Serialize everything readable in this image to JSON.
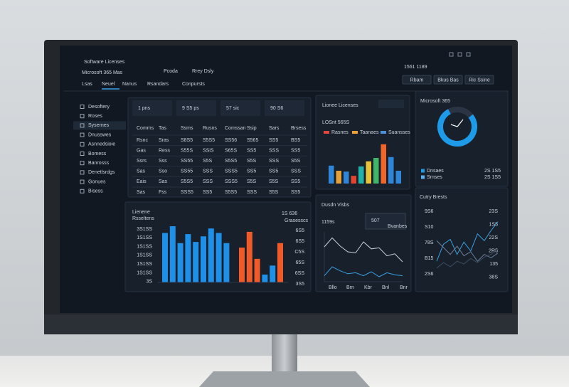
{
  "header": {
    "kicker": "Software Licenses",
    "title": "Microsoft 365 Mas",
    "crumbs": [
      "Pcoda",
      "Rrey Dsly"
    ],
    "code": "1561 1189",
    "buttons": [
      "Rbam",
      "Bkus Bas",
      "Ric Ssine"
    ]
  },
  "tabs": [
    "Lsas",
    "Neuel",
    "Nanus",
    "Rsandars",
    "Conpursts"
  ],
  "sidebar": [
    "Desoftery",
    "Roses",
    "Sysernes",
    "Dnusswes",
    "Asnnedsioie",
    "Bomess",
    "Banrosss",
    "Denetlsrdgs",
    "Gonues",
    "Bisess"
  ],
  "kpis": [
    "1 pns",
    "9 S5 ps",
    "57 sic",
    "90 S6"
  ],
  "table": {
    "columns": [
      "Comms",
      "Tas",
      "Ssms",
      "Rusns",
      "Comssan",
      "Ssip",
      "Sars",
      "Brsess"
    ],
    "rows": [
      [
        "Rsnc",
        "Sras",
        "S8S5",
        "S5S5",
        "SS56",
        "S565",
        "SS5",
        "BS5"
      ],
      [
        "Gas",
        "Ress",
        "S55S",
        "SSiS",
        "S65S",
        "SS5",
        "SSS",
        "SS5"
      ],
      [
        "Ssrs",
        "Sss",
        "SS55",
        "S5S",
        "S5S5",
        "S5S",
        "SSS",
        "S5S"
      ],
      [
        "Sas",
        "Sso",
        "SS55",
        "SSS",
        "SSS5",
        "SS5",
        "SS5",
        "SSS"
      ],
      [
        "Eais",
        "Sas",
        "S5S5",
        "SSS",
        "SSS5",
        "S5S",
        "S5S",
        "SS5"
      ],
      [
        "Sas",
        "Fss",
        "SSS5",
        "SS5",
        "S5S5",
        "SSS",
        "S5S",
        "SS5"
      ]
    ]
  },
  "license_bars": {
    "title": "Lionee Licenses",
    "value": "LOSnt 565S",
    "legend": [
      "Rasnes",
      "Taanaes",
      "Suansses"
    ],
    "legend_colors": [
      "#e0463a",
      "#f0a030",
      "#4a8fd8"
    ],
    "values": [
      42,
      30,
      28,
      18,
      40,
      52,
      60,
      92,
      62,
      30
    ],
    "colors": [
      "#2f86d8",
      "#e6a03a",
      "#2f86d8",
      "#e2452f",
      "#20b2aa",
      "#e8c33a",
      "#3fb56a",
      "#f0662a",
      "#2f86d8",
      "#2f86d8"
    ],
    "ylim": [
      0,
      100
    ]
  },
  "donut": {
    "title": "Microsoft 365",
    "value": 78,
    "legend": [
      {
        "name": "Dnsaes",
        "value": "2S 1S5",
        "color": "#1e9be8"
      },
      {
        "name": "Srnses",
        "value": "2S 1S5",
        "color": "#5ab0f0"
      }
    ]
  },
  "usage_bars": {
    "title": "Lienene",
    "subtitle": "Rsseltens",
    "stat": "1S 636",
    "stat_label": "Grasesscs",
    "left_ticks": [
      "3S1SS",
      "1S1SS",
      "1S1SS",
      "1S1SS",
      "1S1SS",
      "1S1SS",
      "3S"
    ],
    "right_ticks": [
      "6S5",
      "6S5",
      "C5S",
      "65S",
      "6SS",
      "3S5"
    ],
    "values": [
      88,
      100,
      70,
      86,
      72,
      82,
      96,
      88,
      70,
      0,
      62,
      90,
      42,
      14,
      30,
      70
    ],
    "colors": [
      "#1e90e8",
      "#1e90e8",
      "#1e90e8",
      "#1e90e8",
      "#1e90e8",
      "#1e90e8",
      "#1e90e8",
      "#1e90e8",
      "#1e90e8",
      "#1e90e8",
      "#f05a28",
      "#f05a28",
      "#f05a28",
      "#1e90e8",
      "#1e90e8",
      "#f05a28"
    ],
    "ylim": [
      0,
      100
    ]
  },
  "trend": {
    "title": "Dusdn Visbs",
    "stat": "1159s",
    "stat2": "507",
    "stat2_label": "Bvanbes",
    "xticks": [
      "Bllo",
      "Brn",
      "Kbr",
      "Bnl",
      "Bnr"
    ],
    "series": [
      {
        "color": "#c8d0dc",
        "values": [
          70,
          88,
          72,
          60,
          58,
          80,
          66,
          68,
          52,
          56,
          40
        ]
      },
      {
        "color": "#3aa0e0",
        "values": [
          12,
          30,
          22,
          16,
          18,
          12,
          20,
          10,
          18,
          14,
          12
        ]
      }
    ],
    "ylim": [
      0,
      100
    ]
  },
  "country": {
    "title": "Cutry Brests",
    "left_ticks": [
      "9S6",
      "S10",
      "78S",
      "B15",
      "2S6"
    ],
    "right_ticks": [
      "23S",
      "1S5",
      "22S",
      "2R5",
      "135",
      "38S"
    ],
    "series": [
      {
        "color": "#3aa0e0",
        "values": [
          30,
          55,
          62,
          40,
          58,
          45,
          70,
          60,
          75,
          88
        ]
      },
      {
        "color": "#6a7e96",
        "values": [
          60,
          50,
          40,
          52,
          38,
          44,
          30,
          40,
          35,
          42
        ]
      },
      {
        "color": "#3c4c60",
        "values": [
          20,
          28,
          22,
          30,
          26,
          34,
          28,
          36,
          40,
          48
        ]
      }
    ],
    "ylim": [
      0,
      100
    ]
  }
}
